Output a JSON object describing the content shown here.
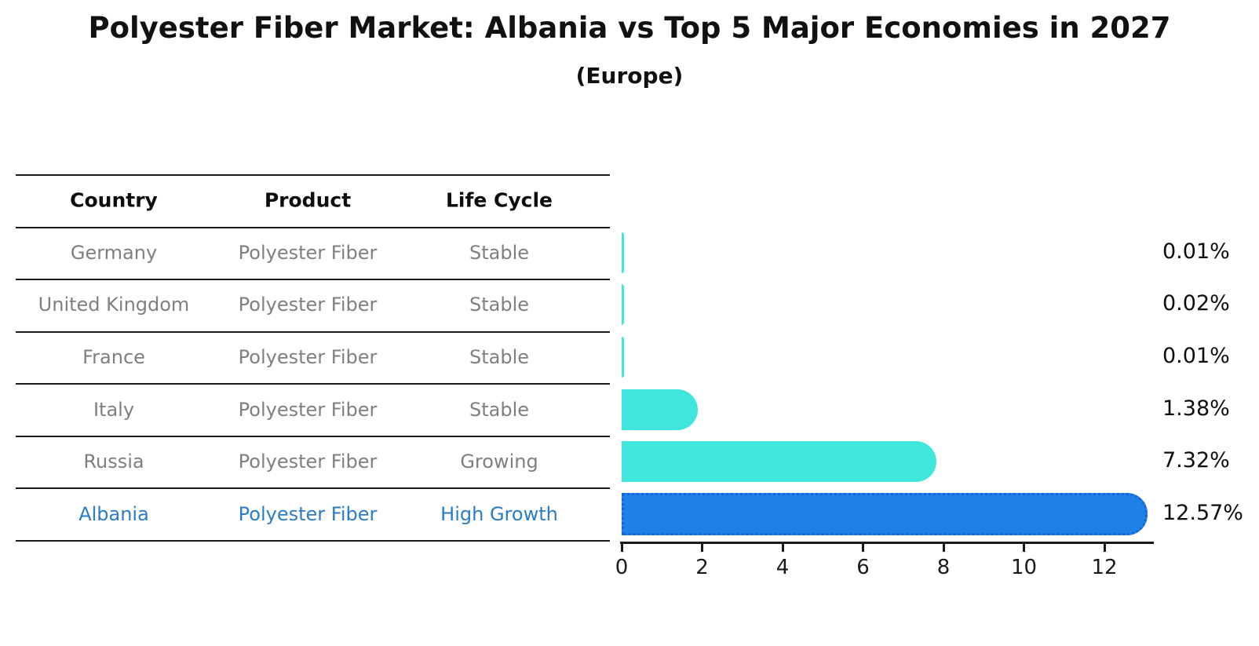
{
  "title": "Polyester Fiber Market: Albania vs Top 5 Major Economies in 2027",
  "subtitle": "(Europe)",
  "table": {
    "headers": [
      "Country",
      "Product",
      "Life Cycle"
    ],
    "rows": [
      {
        "country": "Germany",
        "product": "Polyester Fiber",
        "life_cycle": "Stable",
        "highlighted": false
      },
      {
        "country": "United Kingdom",
        "product": "Polyester Fiber",
        "life_cycle": "Stable",
        "highlighted": false
      },
      {
        "country": "France",
        "product": "Polyester Fiber",
        "life_cycle": "Stable",
        "highlighted": false
      },
      {
        "country": "Italy",
        "product": "Polyester Fiber",
        "life_cycle": "Stable",
        "highlighted": false
      },
      {
        "country": "Russia",
        "product": "Polyester Fiber",
        "life_cycle": "Growing",
        "highlighted": false
      },
      {
        "country": "Albania",
        "product": "Polyester Fiber",
        "life_cycle": "High Growth",
        "highlighted": true
      }
    ]
  },
  "chart_data": {
    "type": "bar",
    "orientation": "horizontal",
    "title": "Polyester Fiber Market: Albania vs Top 5 Major Economies in 2027",
    "subtitle": "(Europe)",
    "categories": [
      "Germany",
      "United Kingdom",
      "France",
      "Italy",
      "Russia",
      "Albania"
    ],
    "values": [
      0.01,
      0.02,
      0.01,
      1.38,
      7.32,
      12.57
    ],
    "value_labels": [
      "0.01%",
      "0.02%",
      "0.01%",
      "1.38%",
      "7.32%",
      "12.57%"
    ],
    "highlight_index": 5,
    "xlabel": "",
    "ylabel": "",
    "xlim": [
      0,
      13.3
    ],
    "xticks": [
      0,
      2,
      4,
      6,
      8,
      10,
      12
    ],
    "xtick_labels": [
      "0",
      "2",
      "4",
      "6",
      "8",
      "10",
      "12"
    ],
    "grid": false,
    "legend": null
  },
  "colors": {
    "bar": "#40e5dc",
    "highlight_bar": "#1f80e8",
    "highlight_bar_border": "#1565d2",
    "highlight_text": "#2b7cc8",
    "row_text": "#7f7f7f",
    "header_text": "#0d0d0d",
    "axis": "#1a1a1a",
    "background": "#ffffff"
  }
}
